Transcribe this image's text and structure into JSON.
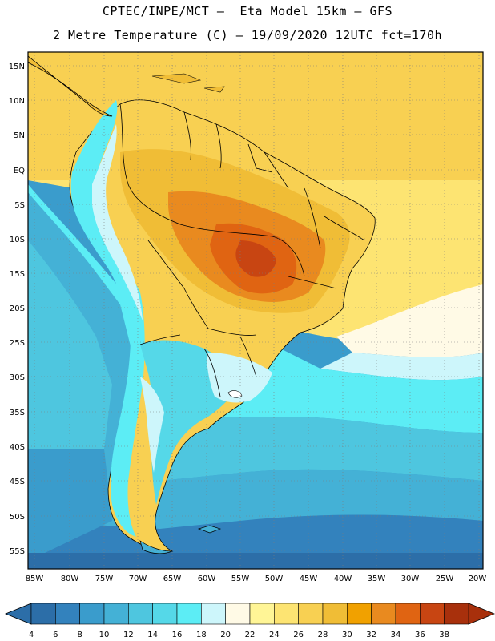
{
  "header": {
    "title_line1": "CPTEC/INPE/MCT –  Eta Model 15km – GFS",
    "title_line2": "2 Metre Temperature (C) – 19/09/2020 12UTC fct=170h"
  },
  "axes": {
    "lat_labels": [
      "15N",
      "10N",
      "5N",
      "EQ",
      "5S",
      "10S",
      "15S",
      "20S",
      "25S",
      "30S",
      "35S",
      "40S",
      "45S",
      "50S",
      "55S"
    ],
    "lon_labels": [
      "85W",
      "80W",
      "75W",
      "70W",
      "65W",
      "60W",
      "55W",
      "50W",
      "45W",
      "40W",
      "35W",
      "30W",
      "25W",
      "20W"
    ]
  },
  "colorbar": {
    "ticks": [
      "4",
      "6",
      "8",
      "10",
      "12",
      "14",
      "16",
      "18",
      "20",
      "22",
      "24",
      "26",
      "28",
      "30",
      "32",
      "34",
      "36",
      "38"
    ],
    "colors": [
      "#2c6ea8",
      "#3382bd",
      "#3a9ccc",
      "#44b1d6",
      "#4ec6df",
      "#55d8e8",
      "#5cedf5",
      "#cdf6fb",
      "#fffae6",
      "#fff596",
      "#fde472",
      "#f8d052",
      "#f0bd36",
      "#f1a100",
      "#e98a1f",
      "#e06412",
      "#c84512",
      "#a8300c"
    ],
    "arrow_left_color": "#2c6ea8",
    "arrow_right_color": "#a8300c"
  }
}
